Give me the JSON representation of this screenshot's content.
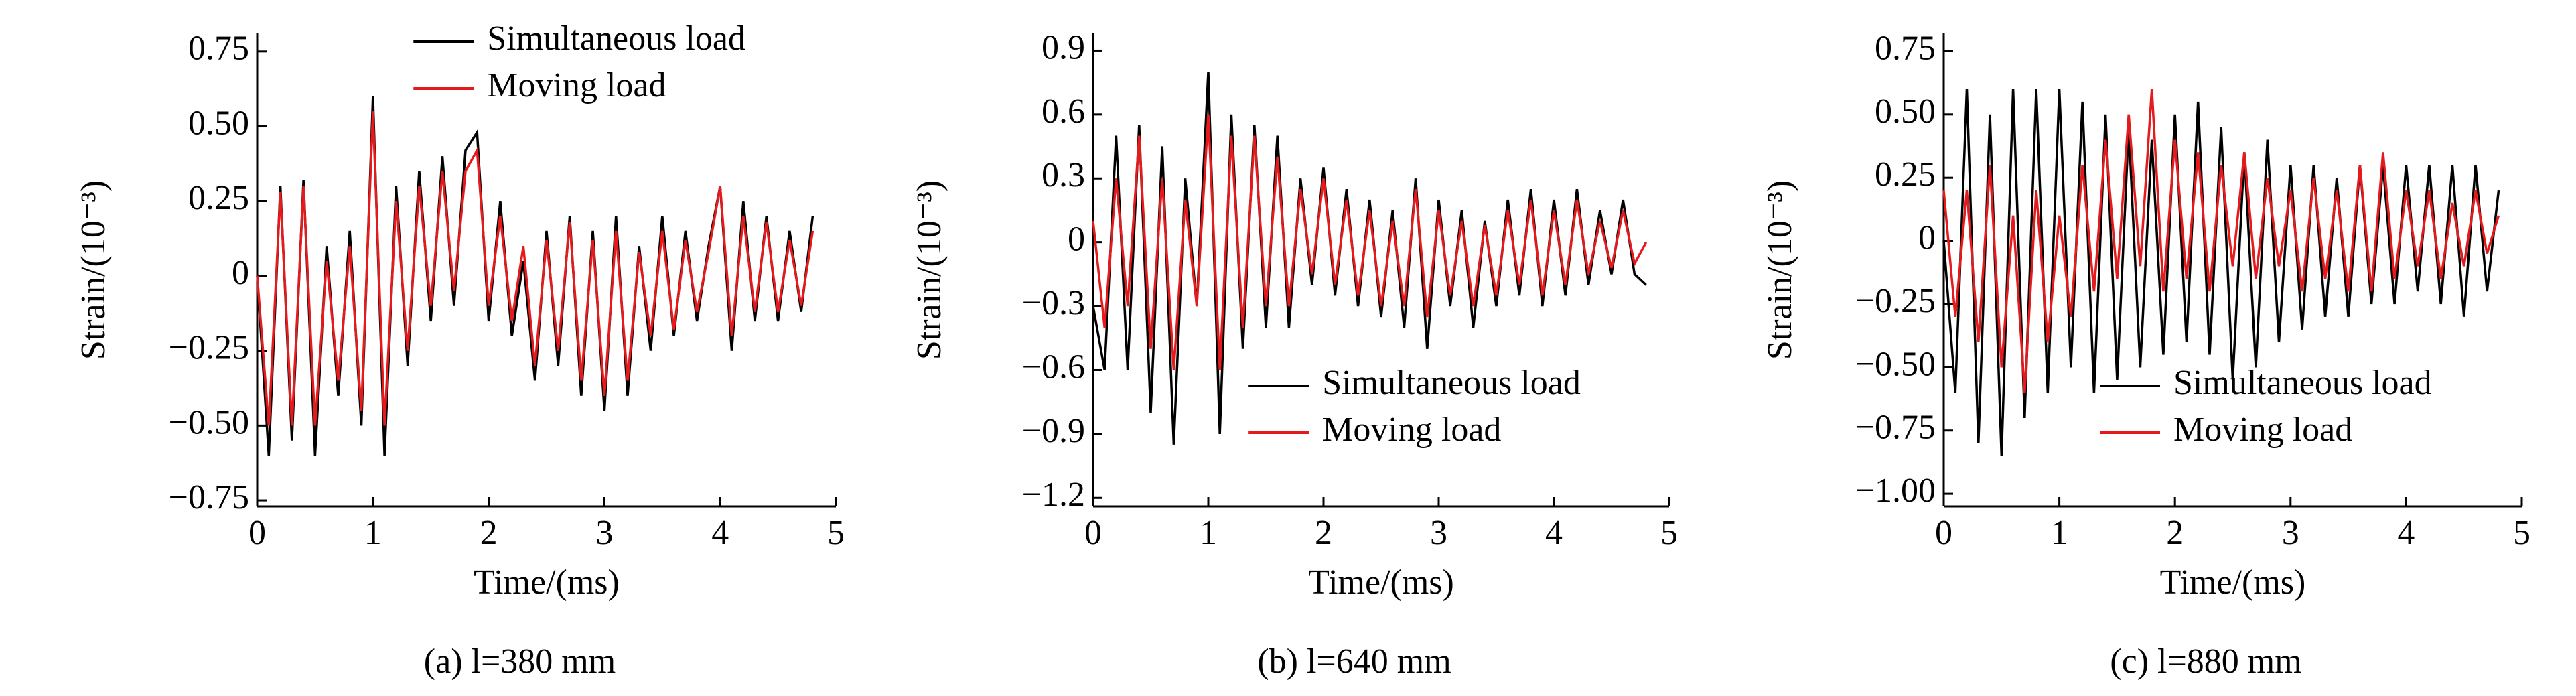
{
  "chart_data": [
    {
      "type": "line",
      "caption": "(a) l=380 mm",
      "xlabel": "Time/(ms)",
      "ylabel": "Strain/(10⁻³)",
      "xlim": [
        0,
        5
      ],
      "xticks": [
        0,
        1,
        2,
        3,
        4,
        5
      ],
      "ylim": [
        -0.77,
        0.81
      ],
      "yticks": [
        {
          "value": 0.75,
          "label": "0.75"
        },
        {
          "value": 0.5,
          "label": "0.50"
        },
        {
          "value": 0.25,
          "label": "0.25"
        },
        0,
        {
          "value": -0.25,
          "label": "−0.25"
        },
        {
          "value": -0.5,
          "label": "−0.50"
        },
        {
          "value": -0.75,
          "label": "−0.75"
        }
      ],
      "legend": "upper center",
      "x": [
        0,
        0.1,
        0.2,
        0.3,
        0.4,
        0.5,
        0.6,
        0.7,
        0.8,
        0.9,
        1,
        1.1,
        1.2,
        1.3,
        1.4,
        1.5,
        1.6,
        1.7,
        1.8,
        1.9,
        2,
        2.1,
        2.2,
        2.3,
        2.4,
        2.5,
        2.6,
        2.7,
        2.8,
        2.9,
        3,
        3.1,
        3.2,
        3.3,
        3.4,
        3.5,
        3.6,
        3.7,
        3.8,
        3.9,
        4,
        4.1,
        4.2,
        4.3,
        4.4,
        4.5,
        4.6,
        4.7,
        4.8
      ],
      "series": [
        {
          "name": "Simultaneous load",
          "color": "#000000",
          "values": [
            0,
            -0.6,
            0.3,
            -0.55,
            0.32,
            -0.6,
            0.1,
            -0.4,
            0.15,
            -0.5,
            0.6,
            -0.6,
            0.3,
            -0.3,
            0.35,
            -0.15,
            0.4,
            -0.1,
            0.42,
            0.48,
            -0.15,
            0.25,
            -0.2,
            0.05,
            -0.35,
            0.15,
            -0.3,
            0.2,
            -0.4,
            0.15,
            -0.45,
            0.2,
            -0.4,
            0.1,
            -0.25,
            0.2,
            -0.2,
            0.15,
            -0.15,
            0.1,
            0.3,
            -0.25,
            0.25,
            -0.15,
            0.2,
            -0.15,
            0.15,
            -0.12,
            0.2
          ]
        },
        {
          "name": "Moving load",
          "color": "#e41a1c",
          "values": [
            0,
            -0.5,
            0.28,
            -0.5,
            0.3,
            -0.5,
            0.05,
            -0.35,
            0.1,
            -0.45,
            0.55,
            -0.5,
            0.25,
            -0.25,
            0.3,
            -0.1,
            0.35,
            -0.05,
            0.35,
            0.42,
            -0.1,
            0.2,
            -0.15,
            0.1,
            -0.3,
            0.12,
            -0.25,
            0.18,
            -0.35,
            0.12,
            -0.4,
            0.15,
            -0.35,
            0.08,
            -0.2,
            0.15,
            -0.18,
            0.12,
            -0.12,
            0.08,
            0.3,
            -0.2,
            0.2,
            -0.12,
            0.18,
            -0.12,
            0.12,
            -0.1,
            0.15
          ]
        }
      ]
    },
    {
      "type": "line",
      "caption": "(b) l=640 mm",
      "xlabel": "Time/(ms)",
      "ylabel": "Strain/(10⁻³)",
      "xlim": [
        0,
        5
      ],
      "xticks": [
        0,
        1,
        2,
        3,
        4,
        5
      ],
      "ylim": [
        -1.24,
        0.98
      ],
      "yticks": [
        0.9,
        0.6,
        0.3,
        0,
        {
          "value": -0.3,
          "label": "−0.3"
        },
        {
          "value": -0.6,
          "label": "−0.6"
        },
        {
          "value": -0.9,
          "label": "−0.9"
        },
        {
          "value": -1.2,
          "label": "−1.2"
        }
      ],
      "legend": "lower center",
      "x": [
        0,
        0.1,
        0.2,
        0.3,
        0.4,
        0.5,
        0.6,
        0.7,
        0.8,
        0.9,
        1,
        1.1,
        1.2,
        1.3,
        1.4,
        1.5,
        1.6,
        1.7,
        1.8,
        1.9,
        2,
        2.1,
        2.2,
        2.3,
        2.4,
        2.5,
        2.6,
        2.7,
        2.8,
        2.9,
        3,
        3.1,
        3.2,
        3.3,
        3.4,
        3.5,
        3.6,
        3.7,
        3.8,
        3.9,
        4,
        4.1,
        4.2,
        4.3,
        4.4,
        4.5,
        4.6,
        4.7,
        4.8
      ],
      "series": [
        {
          "name": "Simultaneous load",
          "color": "#000000",
          "values": [
            -0.3,
            -0.6,
            0.5,
            -0.6,
            0.55,
            -0.8,
            0.45,
            -0.95,
            0.3,
            -0.3,
            0.8,
            -0.9,
            0.6,
            -0.5,
            0.55,
            -0.4,
            0.5,
            -0.4,
            0.3,
            -0.2,
            0.35,
            -0.25,
            0.25,
            -0.3,
            0.2,
            -0.35,
            0.15,
            -0.4,
            0.3,
            -0.5,
            0.2,
            -0.3,
            0.15,
            -0.4,
            0.1,
            -0.3,
            0.2,
            -0.25,
            0.25,
            -0.3,
            0.2,
            -0.25,
            0.25,
            -0.2,
            0.15,
            -0.15,
            0.2,
            -0.15,
            -0.2
          ]
        },
        {
          "name": "Moving load",
          "color": "#e41a1c",
          "values": [
            0.1,
            -0.4,
            0.3,
            -0.3,
            0.5,
            -0.5,
            0.3,
            -0.6,
            0.2,
            -0.3,
            0.6,
            -0.6,
            0.5,
            -0.4,
            0.5,
            -0.3,
            0.4,
            -0.3,
            0.25,
            -0.15,
            0.3,
            -0.2,
            0.2,
            -0.25,
            0.15,
            -0.3,
            0.1,
            -0.3,
            0.25,
            -0.35,
            0.15,
            -0.25,
            0.1,
            -0.3,
            0.08,
            -0.25,
            0.15,
            -0.2,
            0.2,
            -0.25,
            0.15,
            -0.2,
            0.2,
            -0.15,
            0.1,
            -0.12,
            0.15,
            -0.1,
            0
          ]
        }
      ]
    },
    {
      "type": "line",
      "caption": "(c) l=880 mm",
      "xlabel": "Time/(ms)",
      "ylabel": "Strain/(10⁻³)",
      "xlim": [
        0,
        5
      ],
      "xticks": [
        0,
        1,
        2,
        3,
        4,
        5
      ],
      "ylim": [
        -1.05,
        0.82
      ],
      "yticks": [
        {
          "value": 0.75,
          "label": "0.75"
        },
        {
          "value": 0.5,
          "label": "0.50"
        },
        {
          "value": 0.25,
          "label": "0.25"
        },
        0,
        {
          "value": -0.25,
          "label": "−0.25"
        },
        {
          "value": -0.5,
          "label": "−0.50"
        },
        {
          "value": -0.75,
          "label": "−0.75"
        },
        {
          "value": -1,
          "label": "−1.00"
        }
      ],
      "legend": "lower center",
      "x": [
        0,
        0.1,
        0.2,
        0.3,
        0.4,
        0.5,
        0.6,
        0.7,
        0.8,
        0.9,
        1,
        1.1,
        1.2,
        1.3,
        1.4,
        1.5,
        1.6,
        1.7,
        1.8,
        1.9,
        2,
        2.1,
        2.2,
        2.3,
        2.4,
        2.5,
        2.6,
        2.7,
        2.8,
        2.9,
        3,
        3.1,
        3.2,
        3.3,
        3.4,
        3.5,
        3.6,
        3.7,
        3.8,
        3.9,
        4,
        4.1,
        4.2,
        4.3,
        4.4,
        4.5,
        4.6,
        4.7,
        4.8
      ],
      "series": [
        {
          "name": "Simultaneous load",
          "color": "#000000",
          "values": [
            0,
            -0.6,
            0.6,
            -0.8,
            0.5,
            -0.85,
            0.6,
            -0.7,
            0.6,
            -0.6,
            0.6,
            -0.5,
            0.55,
            -0.6,
            0.5,
            -0.55,
            0.45,
            -0.5,
            0.4,
            -0.45,
            0.5,
            -0.4,
            0.55,
            -0.45,
            0.45,
            -0.55,
            0.35,
            -0.5,
            0.4,
            -0.4,
            0.3,
            -0.35,
            0.3,
            -0.3,
            0.25,
            -0.3,
            0.3,
            -0.25,
            0.3,
            -0.25,
            0.3,
            -0.2,
            0.3,
            -0.25,
            0.3,
            -0.3,
            0.3,
            -0.2,
            0.2
          ]
        },
        {
          "name": "Moving load",
          "color": "#e41a1c",
          "values": [
            0.2,
            -0.3,
            0.2,
            -0.4,
            0.3,
            -0.5,
            0.1,
            -0.6,
            0.2,
            -0.4,
            0.1,
            -0.3,
            0.3,
            -0.2,
            0.4,
            -0.15,
            0.5,
            -0.1,
            0.6,
            -0.2,
            0.4,
            -0.15,
            0.35,
            -0.2,
            0.3,
            -0.1,
            0.35,
            -0.15,
            0.25,
            -0.1,
            0.2,
            -0.2,
            0.25,
            -0.15,
            0.2,
            -0.2,
            0.3,
            -0.2,
            0.35,
            -0.15,
            0.2,
            -0.1,
            0.2,
            -0.15,
            0.15,
            -0.1,
            0.2,
            -0.05,
            0.1
          ]
        }
      ]
    }
  ]
}
